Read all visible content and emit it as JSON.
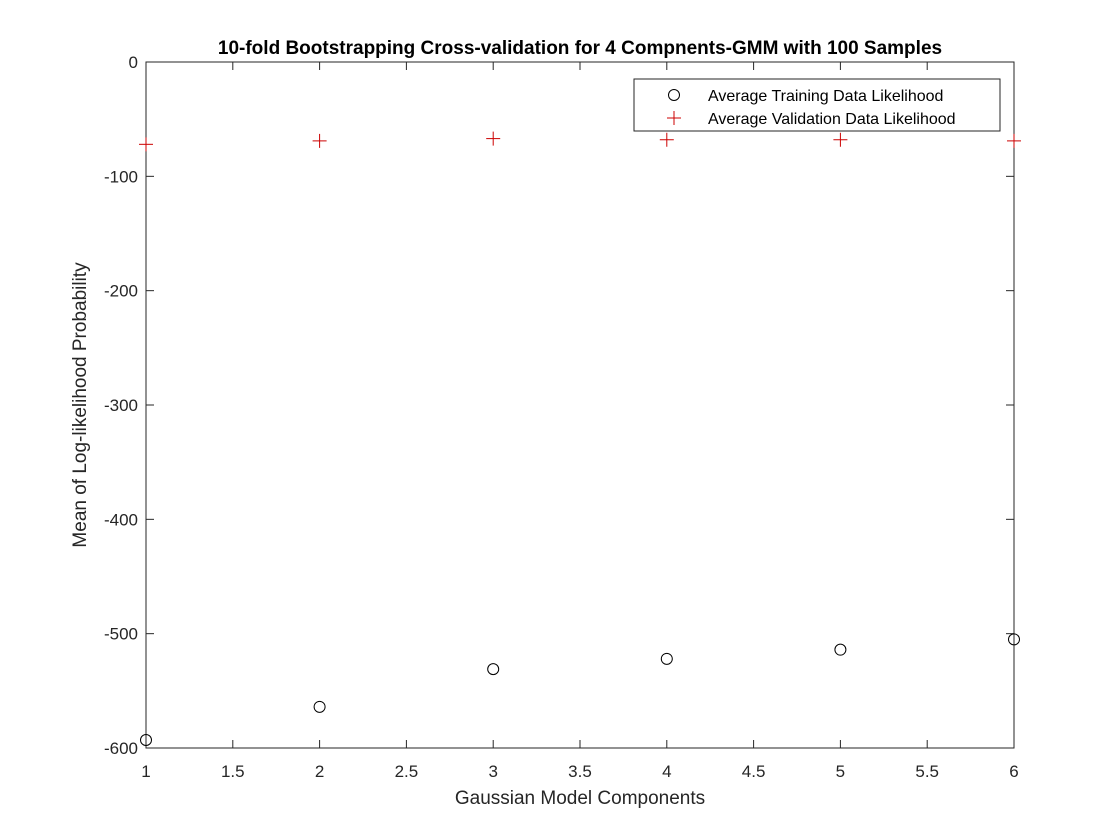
{
  "chart_data": {
    "type": "scatter",
    "title": "10-fold Bootstrapping Cross-validation for 4 Compnents-GMM with 100 Samples",
    "xlabel": "Gaussian Model Components",
    "ylabel": "Mean of Log-likelihood Probability",
    "xlim": [
      1,
      6
    ],
    "ylim": [
      -600,
      0
    ],
    "xticks": [
      1,
      1.5,
      2,
      2.5,
      3,
      3.5,
      4,
      4.5,
      5,
      5.5,
      6
    ],
    "xtick_labels": [
      "1",
      "1.5",
      "2",
      "2.5",
      "3",
      "3.5",
      "4",
      "4.5",
      "5",
      "5.5",
      "6"
    ],
    "yticks": [
      0,
      -100,
      -200,
      -300,
      -400,
      -500,
      -600
    ],
    "ytick_labels": [
      "0",
      "-100",
      "-200",
      "-300",
      "-400",
      "-500",
      "-600"
    ],
    "grid": false,
    "legend_position": "top-right",
    "series": [
      {
        "name": "Average Training Data Likelihood",
        "marker": "circle",
        "color": "#000000",
        "x": [
          1,
          2,
          3,
          4,
          5,
          6
        ],
        "y": [
          -593,
          -564,
          -531,
          -522,
          -514,
          -505
        ]
      },
      {
        "name": "Average Validation Data Likelihood",
        "marker": "plus",
        "color": "#cc0000",
        "x": [
          1,
          2,
          3,
          4,
          5,
          6
        ],
        "y": [
          -72,
          -69,
          -67,
          -68,
          -68,
          -69
        ]
      }
    ]
  }
}
